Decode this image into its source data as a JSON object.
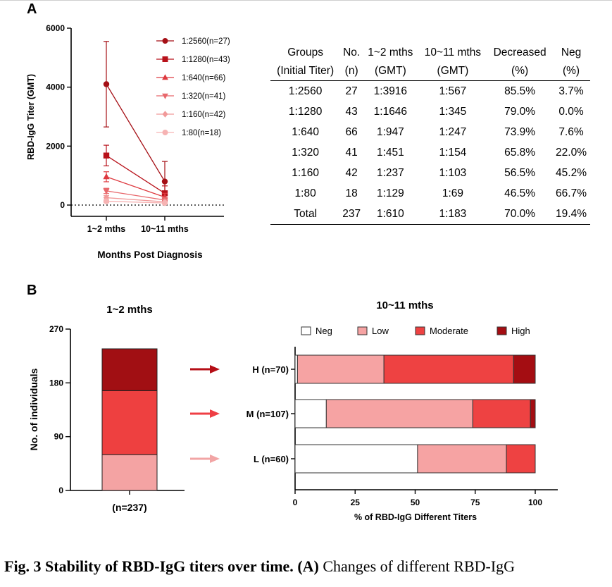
{
  "panel_a_letter": "A",
  "panel_b_letter": "B",
  "chart_data": [
    {
      "type": "line",
      "ylabel": "RBD-IgG Titer (GMT)",
      "xlabel": "Months Post Diagnosis",
      "categories": [
        "1~2 mths",
        "10~11 mths"
      ],
      "ylim": [
        0,
        6000
      ],
      "yticks": [
        0,
        2000,
        4000,
        6000
      ],
      "legend_position": "top-right",
      "series": [
        {
          "name": "1:2560(n=27)",
          "marker": "circle",
          "color": "#a50f15",
          "values": [
            4100,
            800
          ],
          "err": [
            1450,
            680
          ]
        },
        {
          "name": "1:1280(n=43)",
          "marker": "square",
          "color": "#b8111a",
          "values": [
            1680,
            400
          ],
          "err": [
            350,
            250
          ]
        },
        {
          "name": "1:640(n=66)",
          "marker": "triangle-up",
          "color": "#de3a40",
          "values": [
            960,
            270
          ],
          "err": [
            170,
            130
          ]
        },
        {
          "name": "1:320(n=41)",
          "marker": "triangle-down",
          "color": "#e8686c",
          "values": [
            480,
            170
          ],
          "err": [
            90,
            90
          ]
        },
        {
          "name": "1:160(n=42)",
          "marker": "diamond",
          "color": "#f19a9a",
          "values": [
            250,
            110
          ],
          "err": [
            70,
            60
          ]
        },
        {
          "name": "1:80(n=18)",
          "marker": "circle",
          "color": "#f6b3b3",
          "values": [
            130,
            70
          ],
          "err": [
            50,
            40
          ]
        }
      ]
    },
    {
      "type": "bar",
      "title": "1~2 mths",
      "ylabel": "No. of individuals",
      "ylim": [
        0,
        270
      ],
      "yticks": [
        0,
        90,
        180,
        270
      ],
      "categories": [
        "(n=237)"
      ],
      "stack_colors": [
        "#f4a3a3",
        "#ee4040",
        "#a10f13"
      ],
      "stack": [
        60,
        107,
        70
      ]
    },
    {
      "type": "bar",
      "orientation": "horizontal",
      "stacked": true,
      "title": "10~11 mths",
      "xlabel": "% of RBD-IgG Different Titers",
      "xlim": [
        0,
        100
      ],
      "xticks": [
        0,
        25,
        50,
        75,
        100
      ],
      "categories": [
        "H (n=70)",
        "M (n=107)",
        "L (n=60)"
      ],
      "arrow_colors": [
        "#b50e16",
        "#ef3f44",
        "#f2a5a5"
      ],
      "legend_position": "top",
      "series": [
        {
          "name": "Neg",
          "color": "#ffffff",
          "values": [
            1,
            13,
            51
          ]
        },
        {
          "name": "Low",
          "color": "#f6a3a3",
          "values": [
            36,
            61,
            37
          ]
        },
        {
          "name": "Moderate",
          "color": "#ee4242",
          "values": [
            54,
            24,
            12
          ]
        },
        {
          "name": "High",
          "color": "#a40d12",
          "values": [
            9,
            2,
            0
          ]
        }
      ]
    }
  ],
  "table": {
    "header_row1": [
      "Groups",
      "No.",
      "1~2 mths",
      "10~11 mths",
      "Decreased",
      "Neg"
    ],
    "header_row2": [
      "(Initial Titer)",
      "(n)",
      "(GMT)",
      "(GMT)",
      "(%)",
      "(%)"
    ],
    "rows": [
      [
        "1:2560",
        "27",
        "1:3916",
        "1:567",
        "85.5%",
        "3.7%"
      ],
      [
        "1:1280",
        "43",
        "1:1646",
        "1:345",
        "79.0%",
        "0.0%"
      ],
      [
        "1:640",
        "66",
        "1:947",
        "1:247",
        "73.9%",
        "7.6%"
      ],
      [
        "1:320",
        "41",
        "1:451",
        "1:154",
        "65.8%",
        "22.0%"
      ],
      [
        "1:160",
        "42",
        "1:237",
        "1:103",
        "56.5%",
        "45.2%"
      ],
      [
        "1:80",
        "18",
        "1:129",
        "1:69",
        "46.5%",
        "66.7%"
      ],
      [
        "Total",
        "237",
        "1:610",
        "1:183",
        "70.0%",
        "19.4%"
      ]
    ]
  },
  "caption": {
    "bold": "Fig. 3 Stability of RBD-IgG titers over time.",
    "panel_ref": "(A)",
    "text": " Changes of different RBD-IgG"
  }
}
